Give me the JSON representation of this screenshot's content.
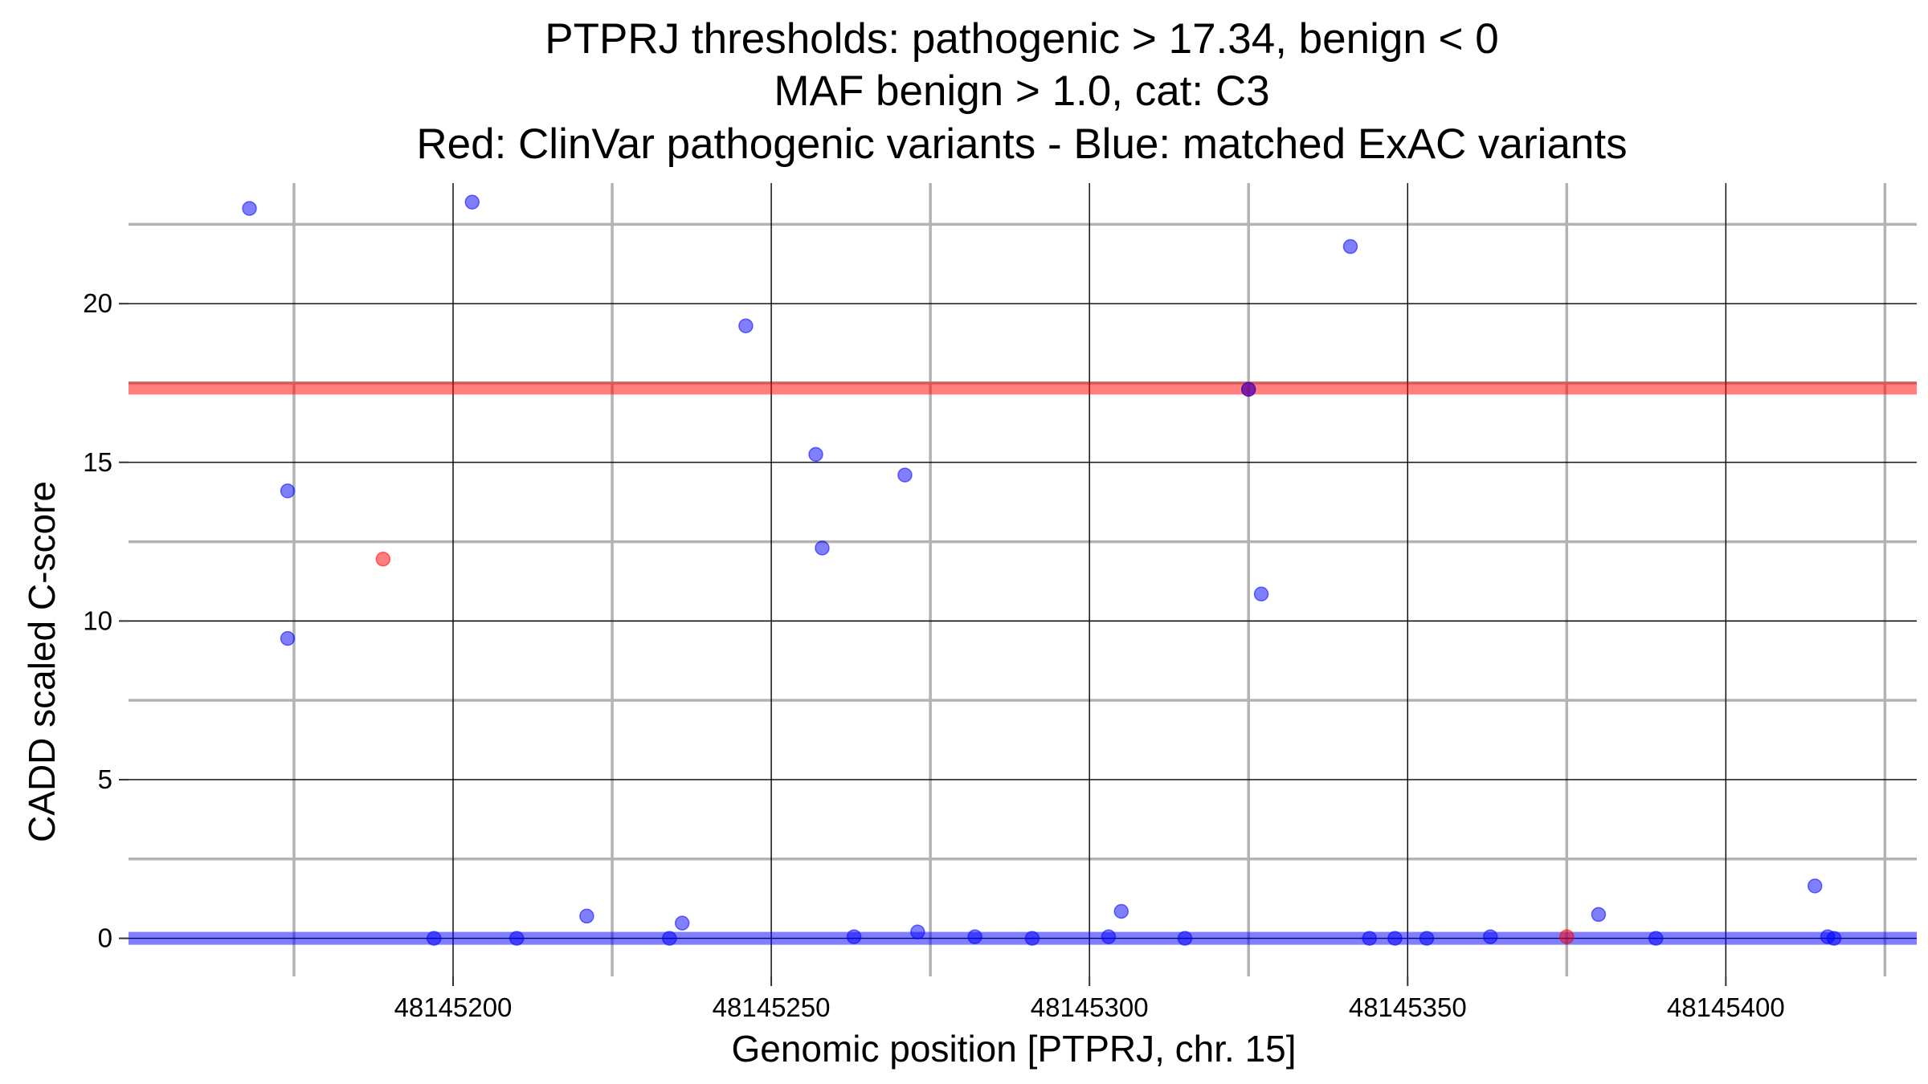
{
  "chart_data": {
    "type": "scatter",
    "title_lines": [
      "PTPRJ thresholds: pathogenic > 17.34, benign < 0",
      "MAF benign > 1.0, cat: C3",
      "Red: ClinVar pathogenic variants - Blue: matched ExAC variants"
    ],
    "xlabel": "Genomic position [PTPRJ, chr. 15]",
    "ylabel": "CADD scaled C-score",
    "xlim": [
      48145149,
      48145430
    ],
    "ylim": [
      -1.2,
      23.8
    ],
    "x_ticks": [
      {
        "value": 48145200,
        "label": "48145200"
      },
      {
        "value": 48145250,
        "label": "48145250"
      },
      {
        "value": 48145300,
        "label": "48145300"
      },
      {
        "value": 48145350,
        "label": "48145350"
      },
      {
        "value": 48145400,
        "label": "48145400"
      }
    ],
    "x_minor_ticks": [
      48145175,
      48145225,
      48145275,
      48145325,
      48145375,
      48145425
    ],
    "y_ticks": [
      {
        "value": 0,
        "label": "0"
      },
      {
        "value": 5,
        "label": "5"
      },
      {
        "value": 10,
        "label": "10"
      },
      {
        "value": 15,
        "label": "15"
      },
      {
        "value": 20,
        "label": "20"
      }
    ],
    "y_minor_ticks": [
      2.5,
      7.5,
      12.5,
      17.5,
      22.5
    ],
    "grid": true,
    "thresholds": [
      {
        "value": 17.34,
        "color": "#ff0000"
      },
      {
        "value": 0,
        "color": "#0000ff"
      }
    ],
    "series": [
      {
        "color": "#ff0000",
        "points": [
          {
            "x": 48145189,
            "y": 11.95
          },
          {
            "x": 48145325,
            "y": 17.3
          },
          {
            "x": 48145375,
            "y": 0.05
          }
        ]
      },
      {
        "color": "#0000ff",
        "points": [
          {
            "x": 48145168,
            "y": 23.0
          },
          {
            "x": 48145174,
            "y": 14.1
          },
          {
            "x": 48145174,
            "y": 9.45
          },
          {
            "x": 48145197,
            "y": 0.0
          },
          {
            "x": 48145203,
            "y": 23.2
          },
          {
            "x": 48145210,
            "y": 0.0
          },
          {
            "x": 48145221,
            "y": 0.7
          },
          {
            "x": 48145234,
            "y": 0.0
          },
          {
            "x": 48145236,
            "y": 0.48
          },
          {
            "x": 48145246,
            "y": 19.3
          },
          {
            "x": 48145257,
            "y": 15.25
          },
          {
            "x": 48145258,
            "y": 12.3
          },
          {
            "x": 48145263,
            "y": 0.05
          },
          {
            "x": 48145271,
            "y": 14.6
          },
          {
            "x": 48145273,
            "y": 0.2
          },
          {
            "x": 48145282,
            "y": 0.05
          },
          {
            "x": 48145291,
            "y": 0.0
          },
          {
            "x": 48145303,
            "y": 0.05
          },
          {
            "x": 48145305,
            "y": 0.85
          },
          {
            "x": 48145315,
            "y": 0.0
          },
          {
            "x": 48145325,
            "y": 17.3
          },
          {
            "x": 48145327,
            "y": 10.85
          },
          {
            "x": 48145341,
            "y": 21.8
          },
          {
            "x": 48145344,
            "y": 0.0
          },
          {
            "x": 48145348,
            "y": 0.0
          },
          {
            "x": 48145353,
            "y": 0.0
          },
          {
            "x": 48145363,
            "y": 0.05
          },
          {
            "x": 48145380,
            "y": 0.75
          },
          {
            "x": 48145389,
            "y": 0.0
          },
          {
            "x": 48145414,
            "y": 1.65
          },
          {
            "x": 48145416,
            "y": 0.05
          },
          {
            "x": 48145417,
            "y": 0.0
          }
        ]
      }
    ]
  }
}
